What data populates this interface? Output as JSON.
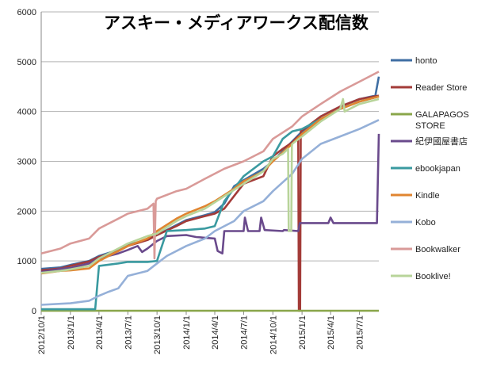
{
  "chart_data": {
    "type": "line",
    "title": "アスキー・メディアワークス配信数",
    "xlabel": "",
    "ylabel": "",
    "ylim": [
      0,
      6000
    ],
    "yticks": [
      0,
      1000,
      2000,
      3000,
      4000,
      5000,
      6000
    ],
    "xlim": [
      "2012-10-01",
      "2015-08-31"
    ],
    "xticks": [
      "2012/10/1",
      "2013/1/1",
      "2013/4/1",
      "2013/7/1",
      "2013/10/1",
      "2014/1/1",
      "2014/4/1",
      "2014/7/1",
      "2014/10/1",
      "2015/1/1",
      "2015/4/1",
      "2015/7/1"
    ],
    "grid": "horizontal",
    "legend": "right",
    "series": [
      {
        "name": "honto",
        "color": "#3f6ea3",
        "points": [
          [
            "2012-10-01",
            840
          ],
          [
            "2012-12-01",
            870
          ],
          [
            "2013-01-01",
            920
          ],
          [
            "2013-03-01",
            1000
          ],
          [
            "2013-04-01",
            1100
          ],
          [
            "2013-06-01",
            1220
          ],
          [
            "2013-07-01",
            1320
          ],
          [
            "2013-09-01",
            1430
          ],
          [
            "2013-10-01",
            1520
          ],
          [
            "2013-12-01",
            1720
          ],
          [
            "2014-01-01",
            1820
          ],
          [
            "2014-03-01",
            1920
          ],
          [
            "2014-04-01",
            1980
          ],
          [
            "2014-05-01",
            2150
          ],
          [
            "2014-06-01",
            2500
          ],
          [
            "2014-07-01",
            2620
          ],
          [
            "2014-09-01",
            2850
          ],
          [
            "2014-10-01",
            3000
          ],
          [
            "2014-12-01",
            3400
          ],
          [
            "2015-01-01",
            3600
          ],
          [
            "2015-03-01",
            3900
          ],
          [
            "2015-05-01",
            4100
          ],
          [
            "2015-07-01",
            4250
          ],
          [
            "2015-08-20",
            4320
          ],
          [
            "2015-08-31",
            4700
          ]
        ]
      },
      {
        "name": "Reader Store",
        "color": "#a33b38",
        "points": [
          [
            "2012-10-01",
            810
          ],
          [
            "2012-12-01",
            850
          ],
          [
            "2013-01-01",
            900
          ],
          [
            "2013-03-01",
            990
          ],
          [
            "2013-04-01",
            1080
          ],
          [
            "2013-06-01",
            1200
          ],
          [
            "2013-07-01",
            1300
          ],
          [
            "2013-09-01",
            1420
          ],
          [
            "2013-10-01",
            1520
          ],
          [
            "2013-12-01",
            1700
          ],
          [
            "2014-01-01",
            1800
          ],
          [
            "2014-03-01",
            1900
          ],
          [
            "2014-04-01",
            1950
          ],
          [
            "2014-05-01",
            2050
          ],
          [
            "2014-07-01",
            2550
          ],
          [
            "2014-09-01",
            2700
          ],
          [
            "2014-10-01",
            3100
          ],
          [
            "2014-11-01",
            3250
          ],
          [
            "2014-12-01",
            3380
          ],
          [
            "2014-12-20",
            3500
          ],
          [
            "2014-12-22",
            0
          ],
          [
            "2014-12-26",
            0
          ],
          [
            "2014-12-28",
            3600
          ],
          [
            "2015-03-01",
            3900
          ],
          [
            "2015-05-01",
            4100
          ],
          [
            "2015-07-01",
            4250
          ],
          [
            "2015-08-31",
            4320
          ]
        ]
      },
      {
        "name": "GALAPAGOS STORE",
        "color": "#8aa64a",
        "points": [
          [
            "2012-10-01",
            0
          ],
          [
            "2015-08-31",
            0
          ]
        ]
      },
      {
        "name": "紀伊國屋書店",
        "color": "#6a4a8c",
        "points": [
          [
            "2012-10-01",
            780
          ],
          [
            "2012-12-01",
            840
          ],
          [
            "2013-01-01",
            860
          ],
          [
            "2013-03-01",
            950
          ],
          [
            "2013-04-01",
            1050
          ],
          [
            "2013-06-01",
            1150
          ],
          [
            "2013-07-01",
            1220
          ],
          [
            "2013-08-01",
            1300
          ],
          [
            "2013-08-15",
            1180
          ],
          [
            "2013-09-01",
            1250
          ],
          [
            "2013-10-01",
            1400
          ],
          [
            "2013-11-01",
            1500
          ],
          [
            "2014-01-01",
            1520
          ],
          [
            "2014-02-01",
            1480
          ],
          [
            "2014-04-01",
            1450
          ],
          [
            "2014-04-10",
            1200
          ],
          [
            "2014-04-25",
            1150
          ],
          [
            "2014-05-01",
            1600
          ],
          [
            "2014-07-01",
            1600
          ],
          [
            "2014-07-05",
            1870
          ],
          [
            "2014-07-15",
            1600
          ],
          [
            "2014-08-20",
            1600
          ],
          [
            "2014-08-25",
            1870
          ],
          [
            "2014-09-05",
            1620
          ],
          [
            "2014-11-01",
            1600
          ],
          [
            "2014-11-05",
            1620
          ],
          [
            "2014-12-20",
            1600
          ],
          [
            "2014-12-25",
            1760
          ],
          [
            "2015-03-25",
            1760
          ],
          [
            "2015-04-01",
            1870
          ],
          [
            "2015-04-10",
            1760
          ],
          [
            "2015-08-25",
            1760
          ],
          [
            "2015-08-31",
            3550
          ]
        ]
      },
      {
        "name": "ebookjapan",
        "color": "#3a9aa0",
        "points": [
          [
            "2012-10-01",
            30
          ],
          [
            "2013-03-20",
            30
          ],
          [
            "2013-04-01",
            900
          ],
          [
            "2013-06-01",
            950
          ],
          [
            "2013-07-01",
            980
          ],
          [
            "2013-09-01",
            980
          ],
          [
            "2013-10-01",
            1000
          ],
          [
            "2013-11-01",
            1600
          ],
          [
            "2013-12-01",
            1610
          ],
          [
            "2014-01-01",
            1620
          ],
          [
            "2014-03-01",
            1650
          ],
          [
            "2014-04-01",
            1700
          ],
          [
            "2014-05-01",
            2200
          ],
          [
            "2014-07-01",
            2700
          ],
          [
            "2014-09-01",
            3000
          ],
          [
            "2014-10-01",
            3100
          ],
          [
            "2014-11-01",
            3450
          ],
          [
            "2014-12-01",
            3600
          ],
          [
            "2015-01-01",
            3650
          ],
          [
            "2015-03-01",
            3850
          ],
          [
            "2015-05-01",
            4050
          ],
          [
            "2015-07-01",
            4200
          ],
          [
            "2015-08-31",
            4300
          ]
        ]
      },
      {
        "name": "Kindle",
        "color": "#e08530",
        "points": [
          [
            "2012-10-01",
            750
          ],
          [
            "2012-12-01",
            800
          ],
          [
            "2013-01-01",
            810
          ],
          [
            "2013-03-01",
            850
          ],
          [
            "2013-04-01",
            1000
          ],
          [
            "2013-06-01",
            1200
          ],
          [
            "2013-07-01",
            1300
          ],
          [
            "2013-09-01",
            1450
          ],
          [
            "2013-10-01",
            1600
          ],
          [
            "2013-12-01",
            1850
          ],
          [
            "2014-01-01",
            1950
          ],
          [
            "2014-03-01",
            2100
          ],
          [
            "2014-04-01",
            2200
          ],
          [
            "2014-06-01",
            2450
          ],
          [
            "2014-07-01",
            2600
          ],
          [
            "2014-09-01",
            2800
          ],
          [
            "2014-10-01",
            3000
          ],
          [
            "2014-12-01",
            3350
          ],
          [
            "2015-01-01",
            3550
          ],
          [
            "2015-03-01",
            3850
          ],
          [
            "2015-05-01",
            4050
          ],
          [
            "2015-07-01",
            4200
          ],
          [
            "2015-08-31",
            4300
          ]
        ]
      },
      {
        "name": "Kobo",
        "color": "#95b0d8",
        "points": [
          [
            "2012-10-01",
            120
          ],
          [
            "2012-12-01",
            140
          ],
          [
            "2013-01-01",
            150
          ],
          [
            "2013-03-01",
            200
          ],
          [
            "2013-04-01",
            300
          ],
          [
            "2013-05-01",
            380
          ],
          [
            "2013-06-01",
            450
          ],
          [
            "2013-07-01",
            700
          ],
          [
            "2013-09-01",
            800
          ],
          [
            "2013-10-01",
            950
          ],
          [
            "2013-11-01",
            1100
          ],
          [
            "2014-01-01",
            1300
          ],
          [
            "2014-03-01",
            1450
          ],
          [
            "2014-04-01",
            1600
          ],
          [
            "2014-06-01",
            1800
          ],
          [
            "2014-07-01",
            2000
          ],
          [
            "2014-09-01",
            2200
          ],
          [
            "2014-10-01",
            2400
          ],
          [
            "2014-12-01",
            2750
          ],
          [
            "2015-01-01",
            3050
          ],
          [
            "2015-03-01",
            3350
          ],
          [
            "2015-05-01",
            3500
          ],
          [
            "2015-07-01",
            3650
          ],
          [
            "2015-08-31",
            3830
          ]
        ]
      },
      {
        "name": "Bookwalker",
        "color": "#d99a98",
        "points": [
          [
            "2012-10-01",
            1150
          ],
          [
            "2012-12-01",
            1250
          ],
          [
            "2013-01-01",
            1350
          ],
          [
            "2013-03-01",
            1450
          ],
          [
            "2013-04-01",
            1650
          ],
          [
            "2013-06-01",
            1850
          ],
          [
            "2013-07-01",
            1950
          ],
          [
            "2013-09-01",
            2050
          ],
          [
            "2013-09-20",
            2150
          ],
          [
            "2013-09-23",
            1050
          ],
          [
            "2013-09-27",
            2200
          ],
          [
            "2013-10-01",
            2250
          ],
          [
            "2013-12-01",
            2400
          ],
          [
            "2014-01-01",
            2450
          ],
          [
            "2014-03-01",
            2650
          ],
          [
            "2014-05-01",
            2850
          ],
          [
            "2014-07-01",
            3000
          ],
          [
            "2014-09-01",
            3200
          ],
          [
            "2014-10-01",
            3450
          ],
          [
            "2014-12-01",
            3700
          ],
          [
            "2015-01-01",
            3900
          ],
          [
            "2015-03-01",
            4150
          ],
          [
            "2015-05-01",
            4400
          ],
          [
            "2015-07-01",
            4600
          ],
          [
            "2015-08-31",
            4800
          ]
        ]
      },
      {
        "name": "Booklive!",
        "color": "#b8d49a",
        "points": [
          [
            "2012-10-01",
            760
          ],
          [
            "2012-12-01",
            800
          ],
          [
            "2013-01-01",
            830
          ],
          [
            "2013-03-01",
            900
          ],
          [
            "2013-04-01",
            1050
          ],
          [
            "2013-06-01",
            1250
          ],
          [
            "2013-07-01",
            1350
          ],
          [
            "2013-09-01",
            1500
          ],
          [
            "2013-10-01",
            1550
          ],
          [
            "2013-12-01",
            1800
          ],
          [
            "2014-01-01",
            1900
          ],
          [
            "2014-03-01",
            2050
          ],
          [
            "2014-05-01",
            2300
          ],
          [
            "2014-07-01",
            2550
          ],
          [
            "2014-09-01",
            2800
          ],
          [
            "2014-10-01",
            3050
          ],
          [
            "2014-11-01",
            3150
          ],
          [
            "2014-11-18",
            3250
          ],
          [
            "2014-11-20",
            1600
          ],
          [
            "2014-11-28",
            1600
          ],
          [
            "2014-11-30",
            3300
          ],
          [
            "2014-12-01",
            3350
          ],
          [
            "2015-01-01",
            3500
          ],
          [
            "2015-03-01",
            3800
          ],
          [
            "2015-05-01",
            4050
          ],
          [
            "2015-05-10",
            4250
          ],
          [
            "2015-05-15",
            4000
          ],
          [
            "2015-07-01",
            4150
          ],
          [
            "2015-08-31",
            4250
          ]
        ]
      }
    ]
  }
}
